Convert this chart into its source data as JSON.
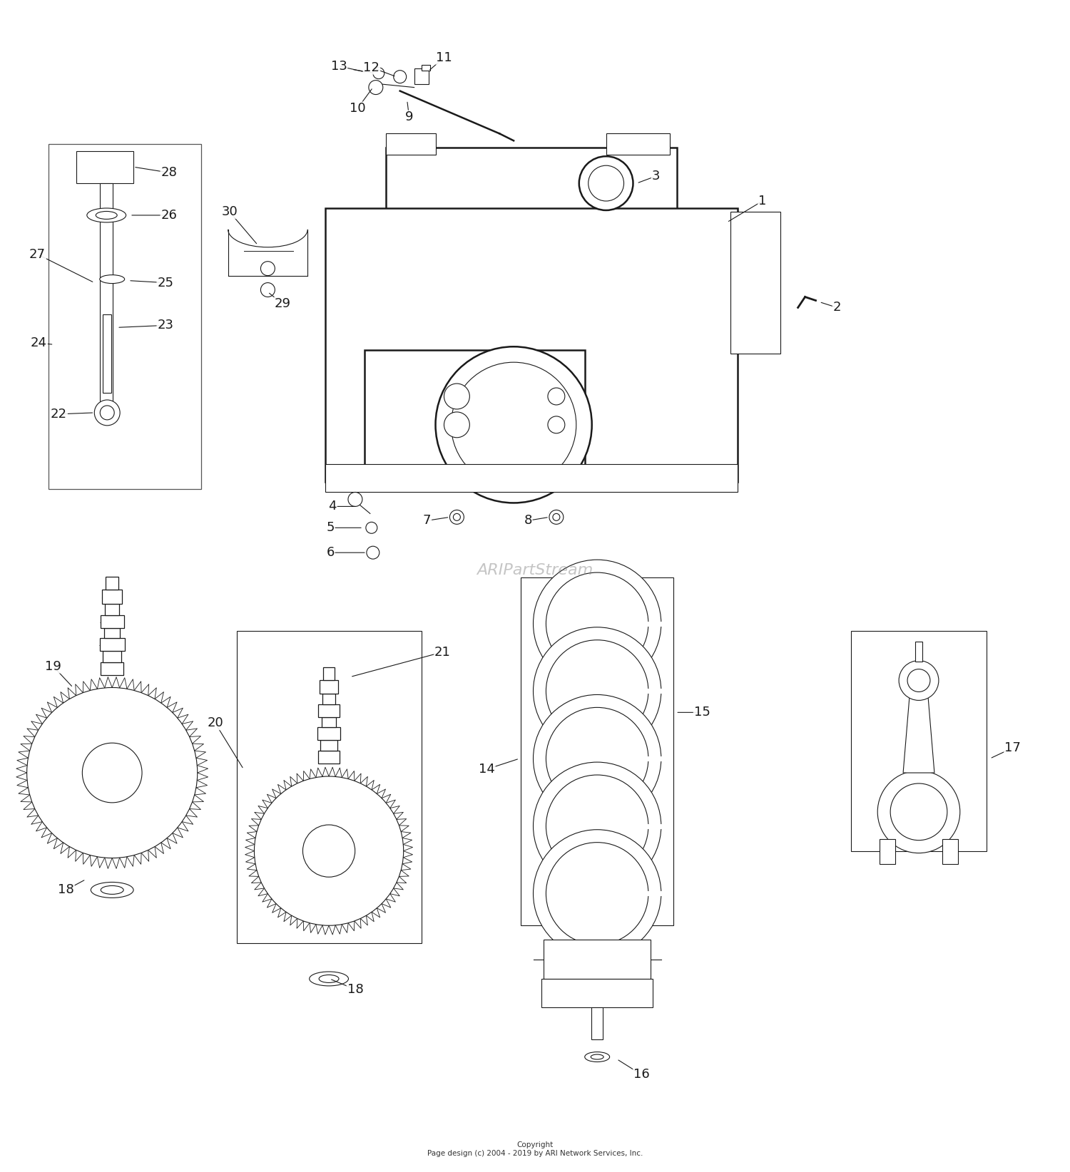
{
  "bg_color": "#ffffff",
  "line_color": "#1a1a1a",
  "label_color": "#000000",
  "watermark": "ARIPartStream",
  "copyright": "Copyright\nPage design (c) 2004 - 2019 by ARI Network Services, Inc.",
  "fig_width": 15.0,
  "fig_height": 16.44,
  "dpi": 100
}
